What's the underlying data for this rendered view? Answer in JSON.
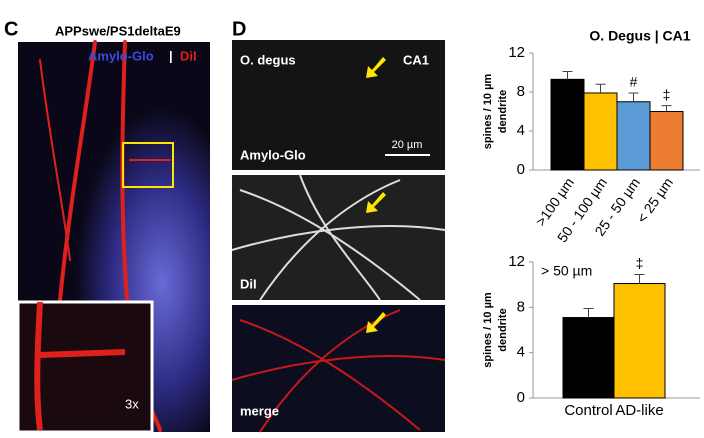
{
  "panel_c": {
    "label": "C",
    "title": "APPswe/PS1deltaE9",
    "stain_1": "Amylo-Glo",
    "separator": "|",
    "stain_2": "DiI",
    "inset_label": "3x"
  },
  "panel_d": {
    "label": "D",
    "species": "O. degus",
    "region": "CA1",
    "scale_bar": "20 µm",
    "images": [
      "Amylo-Glo",
      "DiI",
      "merge"
    ]
  },
  "chart_data": [
    {
      "type": "bar",
      "title": "O. Degus | CA1",
      "y_label": [
        "spines / 10 µm",
        "dendrite"
      ],
      "categories": [
        ">100 µm",
        "50 - 100 µm",
        "25 - 50 µm",
        "< 25 µm"
      ],
      "values": [
        9.3,
        7.9,
        7.0,
        6.0
      ],
      "errors": [
        0.8,
        0.9,
        0.9,
        0.6
      ],
      "colors": [
        "#000000",
        "#ffc000",
        "#5b9bd5",
        "#ed7d31"
      ],
      "significance": [
        null,
        null,
        "#",
        "‡"
      ],
      "ylim": [
        0,
        12
      ],
      "yticks": [
        0,
        4,
        8,
        12
      ]
    },
    {
      "type": "bar",
      "annotation": "> 50 µm",
      "y_label": [
        "spines / 10 µm",
        "dendrite"
      ],
      "categories": [
        "Control",
        "AD-like"
      ],
      "values": [
        7.1,
        10.1
      ],
      "errors": [
        0.8,
        0.8
      ],
      "colors": [
        "#000000",
        "#ffc000"
      ],
      "significance": [
        null,
        "‡"
      ],
      "ylim": [
        0,
        12
      ],
      "yticks": [
        0,
        4,
        8,
        12
      ]
    }
  ]
}
